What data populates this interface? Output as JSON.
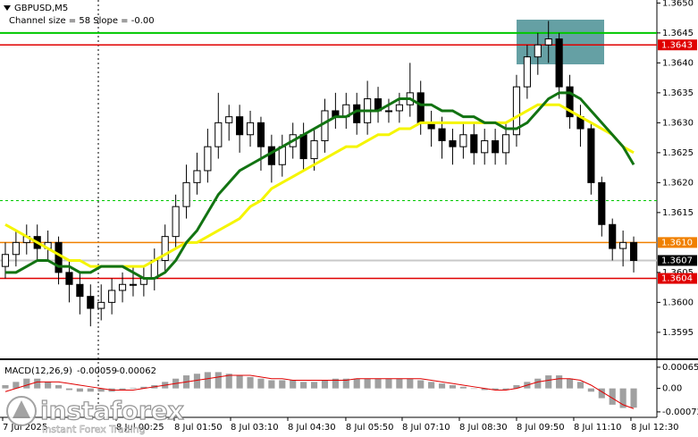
{
  "watermark": {
    "brand": "instaforex",
    "tagline": "Instant Forex Trading"
  },
  "chart_data": [
    {
      "type": "candlestick",
      "title": "GBPUSD,M5",
      "subtitle": "Channel size = 58 Slope = -0.00",
      "xlim": [
        -0.5,
        59.5
      ],
      "ylim": [
        1.35908,
        1.36505
      ],
      "xticks": [
        {
          "value": -0.25,
          "label": "7 Jul 2025"
        },
        {
          "value": 10.41,
          "label": "8 Jul 00:25"
        },
        {
          "value": 15.86,
          "label": "8 Jul 01:50"
        },
        {
          "value": 21.15,
          "label": "8 Jul 03:10"
        },
        {
          "value": 26.52,
          "label": "8 Jul 04:30"
        },
        {
          "value": 31.97,
          "label": "8 Jul 05:50"
        },
        {
          "value": 37.26,
          "label": "8 Jul 07:10"
        },
        {
          "value": 42.63,
          "label": "8 Jul 08:30"
        },
        {
          "value": 48.0,
          "label": "8 Jul 09:50"
        },
        {
          "value": 53.37,
          "label": "8 Jul 11:10"
        },
        {
          "value": 58.74,
          "label": "8 Jul 12:30"
        }
      ],
      "yticks": [
        {
          "value": 1.365,
          "label": "1.3650"
        },
        1.3645,
        {
          "value": 1.364,
          "label": "1.3640"
        },
        1.3635,
        {
          "value": 1.363,
          "label": "1.3630"
        },
        1.3625,
        {
          "value": 1.362,
          "label": "1.3620"
        },
        1.3615,
        1.3605,
        {
          "value": 1.36,
          "label": "1.3600"
        },
        1.3595
      ],
      "bull_color": "#ffffff",
      "bear_color": "#000000",
      "open": [
        1.3606,
        1.3608,
        1.361,
        1.3611,
        1.3609,
        1.361,
        1.3605,
        1.3603,
        1.3601,
        1.3599,
        1.36,
        1.3602,
        1.3603,
        1.3603,
        1.3604,
        1.3607,
        1.3611,
        1.3616,
        1.362,
        1.3622,
        1.3626,
        1.363,
        1.3631,
        1.3628,
        1.363,
        1.3626,
        1.3623,
        1.3626,
        1.3628,
        1.3624,
        1.3627,
        1.3632,
        1.3631,
        1.3633,
        1.363,
        1.3634,
        1.3632,
        1.3632,
        1.3633,
        1.3635,
        1.363,
        1.3629,
        1.3627,
        1.3626,
        1.3628,
        1.3625,
        1.3627,
        1.3625,
        1.3628,
        1.3636,
        1.3641,
        1.3643,
        1.3644,
        1.3636,
        1.3631,
        1.3629,
        1.362,
        1.3613,
        1.3609,
        1.361
      ],
      "high": [
        1.361,
        1.3612,
        1.3613,
        1.3613,
        1.3612,
        1.3611,
        1.3607,
        1.3605,
        1.3603,
        1.3603,
        1.3604,
        1.3605,
        1.3606,
        1.3606,
        1.3609,
        1.3613,
        1.3618,
        1.3623,
        1.3625,
        1.3629,
        1.3635,
        1.3633,
        1.3633,
        1.3632,
        1.3631,
        1.3628,
        1.3628,
        1.363,
        1.363,
        1.3629,
        1.3634,
        1.3635,
        1.3635,
        1.3635,
        1.3637,
        1.3636,
        1.3634,
        1.3635,
        1.364,
        1.3637,
        1.3632,
        1.3631,
        1.3629,
        1.363,
        1.363,
        1.3629,
        1.3629,
        1.363,
        1.3638,
        1.3643,
        1.3645,
        1.3647,
        1.3645,
        1.3638,
        1.3633,
        1.363,
        1.3621,
        1.3614,
        1.3612,
        1.3611
      ],
      "low": [
        1.3604,
        1.3606,
        1.3608,
        1.3607,
        1.3607,
        1.3603,
        1.36,
        1.3598,
        1.3596,
        1.3597,
        1.3598,
        1.36,
        1.3601,
        1.3601,
        1.3602,
        1.3605,
        1.3609,
        1.3614,
        1.3618,
        1.362,
        1.3624,
        1.3627,
        1.3625,
        1.3626,
        1.3622,
        1.362,
        1.3621,
        1.3624,
        1.3622,
        1.3622,
        1.3625,
        1.3629,
        1.3629,
        1.3628,
        1.3628,
        1.363,
        1.363,
        1.363,
        1.3631,
        1.3628,
        1.3626,
        1.3624,
        1.3623,
        1.3624,
        1.3623,
        1.3623,
        1.3623,
        1.3623,
        1.3626,
        1.3634,
        1.3638,
        1.364,
        1.3634,
        1.3629,
        1.3626,
        1.3618,
        1.3611,
        1.3607,
        1.3606,
        1.3605
      ],
      "close": [
        1.3608,
        1.361,
        1.3611,
        1.3609,
        1.361,
        1.3605,
        1.3603,
        1.3601,
        1.3599,
        1.36,
        1.3602,
        1.3603,
        1.3603,
        1.3604,
        1.3607,
        1.3611,
        1.3616,
        1.362,
        1.3622,
        1.3626,
        1.363,
        1.3631,
        1.3628,
        1.363,
        1.3626,
        1.3623,
        1.3626,
        1.3628,
        1.3624,
        1.3627,
        1.3632,
        1.3631,
        1.3633,
        1.363,
        1.3634,
        1.3632,
        1.3632,
        1.3633,
        1.3635,
        1.363,
        1.3629,
        1.3627,
        1.3626,
        1.3628,
        1.3625,
        1.3627,
        1.3625,
        1.3628,
        1.3636,
        1.3641,
        1.3643,
        1.3644,
        1.3636,
        1.3631,
        1.3629,
        1.362,
        1.3613,
        1.3609,
        1.361,
        1.3607
      ],
      "series": [
        {
          "color": "#f5f500",
          "values": [
            1.3613,
            1.3612,
            1.3611,
            1.361,
            1.3609,
            1.3608,
            1.3607,
            1.3607,
            1.3606,
            1.3606,
            1.3606,
            1.3606,
            1.3606,
            1.3606,
            1.3607,
            1.3608,
            1.3609,
            1.361,
            1.361,
            1.3611,
            1.3612,
            1.3613,
            1.3614,
            1.3616,
            1.3617,
            1.3619,
            1.362,
            1.3621,
            1.3622,
            1.3623,
            1.3624,
            1.3625,
            1.3626,
            1.3626,
            1.3627,
            1.3628,
            1.3628,
            1.3629,
            1.3629,
            1.363,
            1.363,
            1.363,
            1.363,
            1.363,
            1.363,
            1.363,
            1.363,
            1.363,
            1.3631,
            1.3632,
            1.3633,
            1.3633,
            1.3633,
            1.3632,
            1.3631,
            1.363,
            1.3629,
            1.3628,
            1.3626,
            1.3625
          ]
        },
        {
          "color": "#127312",
          "values": [
            1.3605,
            1.3605,
            1.3606,
            1.3607,
            1.3607,
            1.3606,
            1.3606,
            1.3605,
            1.3605,
            1.3606,
            1.3606,
            1.3606,
            1.3605,
            1.3604,
            1.3604,
            1.3605,
            1.3607,
            1.361,
            1.3612,
            1.3615,
            1.3618,
            1.362,
            1.3622,
            1.3623,
            1.3624,
            1.3625,
            1.3626,
            1.3627,
            1.3628,
            1.3629,
            1.363,
            1.3631,
            1.3631,
            1.3632,
            1.3632,
            1.3632,
            1.3633,
            1.3634,
            1.3634,
            1.3633,
            1.3633,
            1.3632,
            1.3632,
            1.3631,
            1.3631,
            1.363,
            1.363,
            1.3629,
            1.3629,
            1.363,
            1.3632,
            1.3634,
            1.3635,
            1.3635,
            1.3634,
            1.3632,
            1.363,
            1.3628,
            1.3626,
            1.3623
          ]
        }
      ],
      "levels": [
        {
          "value": 1.3645,
          "color": "#00c800"
        },
        {
          "value": 1.3643,
          "label": "1.3643",
          "color": "#e00000"
        },
        {
          "value": 1.3617,
          "color": "#00c800",
          "dash": true
        },
        {
          "value": 1.361,
          "label": "1.3610",
          "color": "#f08000"
        },
        {
          "value": 1.3607,
          "label": "1.3607",
          "color": "#c8c8c8",
          "label_color": "#000000"
        },
        {
          "value": 1.3604,
          "label": "1.3604",
          "color": "#e00000"
        }
      ]
    },
    {
      "type": "macd",
      "title": "MACD(12,26,9)",
      "xlim": [
        -0.5,
        59.5
      ],
      "ylim": [
        -0.00086,
        0.00084
      ],
      "yticks": [
        0.00065,
        {
          "value": 0,
          "label": "0.00"
        },
        -0.00072
      ],
      "series": [
        {
          "color": "#a0a0a0",
          "values": [
            0.0001,
            0.0002,
            0.0003,
            0.0003,
            0.0002,
            0.0001,
            -5e-05,
            -0.0001,
            -0.0001,
            -0.0001,
            -0.0001,
            -5e-05,
            2e-05,
            5e-05,
            0.0001,
            0.0002,
            0.0003,
            0.0004,
            0.00045,
            0.0005,
            0.0005,
            0.00045,
            0.0004,
            0.00035,
            0.0003,
            0.00025,
            0.00025,
            0.00025,
            0.0002,
            0.0002,
            0.00025,
            0.0003,
            0.0003,
            0.0003,
            0.0003,
            0.0003,
            0.0003,
            0.0003,
            0.0003,
            0.00025,
            0.0002,
            0.00015,
            0.0001,
            5e-05,
            0,
            -5e-05,
            -5e-05,
            -5e-05,
            0.0001,
            0.0002,
            0.0003,
            0.0004,
            0.0004,
            0.0003,
            0.0002,
            -0.0001,
            -0.0003,
            -0.0005,
            -0.0006,
            -0.00059
          ]
        },
        {
          "color": "#e00000",
          "values": [
            -0.0001,
            0,
            0.0001,
            0.0002,
            0.0002,
            0.0002,
            0.00015,
            0.0001,
            5e-05,
            0,
            -5e-05,
            -5e-05,
            -5e-05,
            0,
            5e-05,
            0.0001,
            0.00015,
            0.0002,
            0.00025,
            0.0003,
            0.00035,
            0.0004,
            0.0004,
            0.0004,
            0.00035,
            0.0003,
            0.0003,
            0.00025,
            0.00025,
            0.00025,
            0.00025,
            0.00025,
            0.00025,
            0.0003,
            0.0003,
            0.0003,
            0.0003,
            0.0003,
            0.0003,
            0.0003,
            0.00025,
            0.0002,
            0.00015,
            0.0001,
            5e-05,
            0,
            -5e-05,
            -5e-05,
            0,
            0.0001,
            0.0002,
            0.00025,
            0.0003,
            0.0003,
            0.00025,
            0.0001,
            -0.0001,
            -0.0003,
            -0.0005,
            -0.00062
          ]
        }
      ]
    }
  ]
}
